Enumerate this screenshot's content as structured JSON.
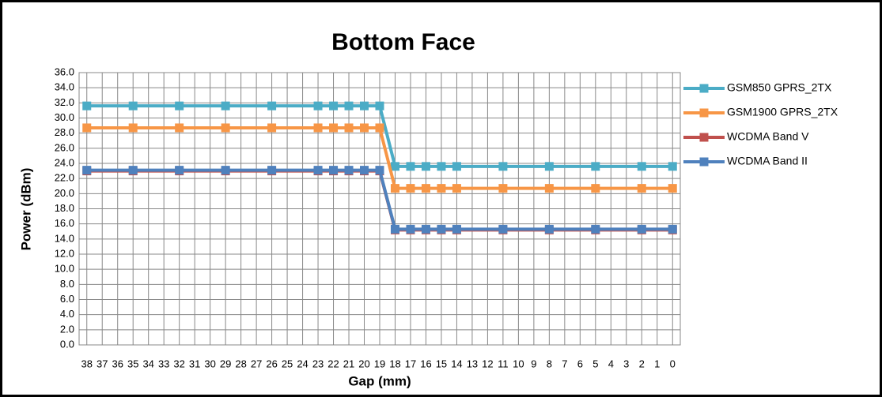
{
  "chart_data": {
    "type": "line",
    "title": "Bottom Face",
    "xlabel": "Gap (mm)",
    "ylabel": "Power (dBm)",
    "x": [
      38,
      35,
      32,
      29,
      26,
      23,
      22,
      21,
      20,
      19,
      18,
      17,
      16,
      15,
      14,
      11,
      8,
      5,
      2,
      0
    ],
    "xlim": [
      38.5,
      -0.5
    ],
    "xticks": [
      38,
      37,
      36,
      35,
      34,
      33,
      32,
      31,
      30,
      29,
      28,
      27,
      26,
      25,
      24,
      23,
      22,
      21,
      20,
      19,
      18,
      17,
      16,
      15,
      14,
      13,
      12,
      11,
      10,
      9,
      8,
      7,
      6,
      5,
      4,
      3,
      2,
      1,
      0
    ],
    "ylim": [
      0,
      36
    ],
    "yticks": [
      {
        "value": 0,
        "label": "0.0"
      },
      {
        "value": 2,
        "label": "2.0"
      },
      {
        "value": 4,
        "label": "4.0"
      },
      {
        "value": 6,
        "label": "6.0"
      },
      {
        "value": 8,
        "label": "8.0"
      },
      {
        "value": 10,
        "label": "10.0"
      },
      {
        "value": 12,
        "label": "12.0"
      },
      {
        "value": 14,
        "label": "14.0"
      },
      {
        "value": 16,
        "label": "16.0"
      },
      {
        "value": 18,
        "label": "18.0"
      },
      {
        "value": 20,
        "label": "20.0"
      },
      {
        "value": 22,
        "label": "22.0"
      },
      {
        "value": 24,
        "label": "24.0"
      },
      {
        "value": 26,
        "label": "26.0"
      },
      {
        "value": 28,
        "label": "28.0"
      },
      {
        "value": 30,
        "label": "30.0"
      },
      {
        "value": 32,
        "label": "32.0"
      },
      {
        "value": 34,
        "label": "34.0"
      },
      {
        "value": 36,
        "label": "36.0"
      }
    ],
    "grid": true,
    "legend": "right",
    "series": [
      {
        "name": "GSM850 GPRS_2TX",
        "color": "#4bacc6",
        "values": [
          31.6,
          31.6,
          31.6,
          31.6,
          31.6,
          31.6,
          31.6,
          31.6,
          31.6,
          31.6,
          23.6,
          23.6,
          23.6,
          23.6,
          23.6,
          23.6,
          23.6,
          23.6,
          23.6,
          23.6
        ]
      },
      {
        "name": "GSM1900  GPRS_2TX",
        "color": "#f79646",
        "values": [
          28.7,
          28.7,
          28.7,
          28.7,
          28.7,
          28.7,
          28.7,
          28.7,
          28.7,
          28.7,
          20.7,
          20.7,
          20.7,
          20.7,
          20.7,
          20.7,
          20.7,
          20.7,
          20.7,
          20.7
        ]
      },
      {
        "name": "WCDMA Band V",
        "color": "#c0504d",
        "values": [
          23.0,
          23.0,
          23.0,
          23.0,
          23.0,
          23.0,
          23.0,
          23.0,
          23.0,
          23.0,
          15.2,
          15.2,
          15.2,
          15.2,
          15.2,
          15.2,
          15.2,
          15.2,
          15.2,
          15.2
        ]
      },
      {
        "name": "WCDMA Band  II",
        "color": "#4f81bd",
        "values": [
          23.1,
          23.1,
          23.1,
          23.1,
          23.1,
          23.1,
          23.1,
          23.1,
          23.1,
          23.1,
          15.3,
          15.3,
          15.3,
          15.3,
          15.3,
          15.3,
          15.3,
          15.3,
          15.3,
          15.3
        ]
      }
    ]
  }
}
